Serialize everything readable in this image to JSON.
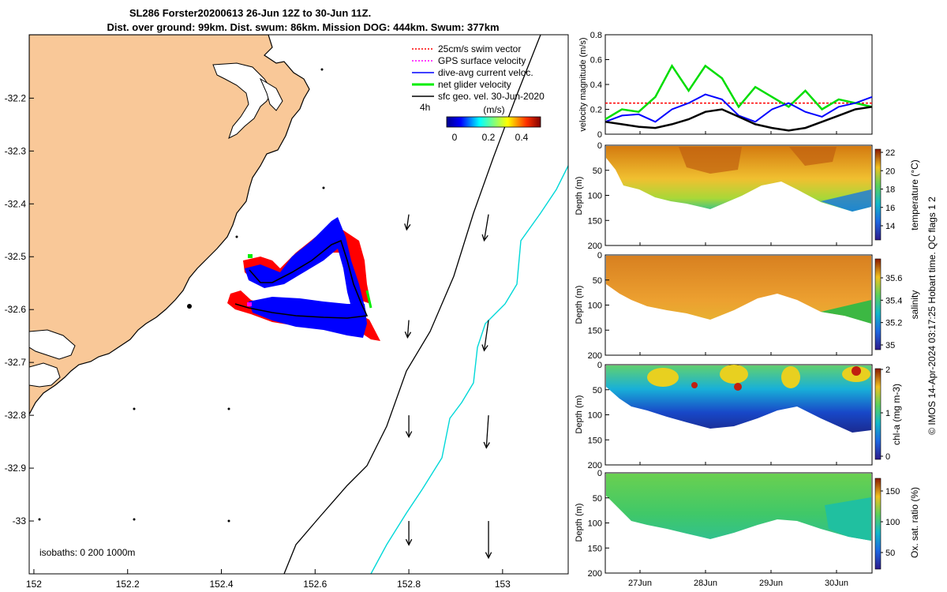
{
  "title": {
    "line1": "SL286 Forster20200613 26-Jun 12Z to 30-Jun 11Z.",
    "line2": "Dist. over ground: 99km. Dist. swum: 86km. Mission DOG: 444km. Swum: 377km"
  },
  "map": {
    "x_ticks": [
      "152",
      "152.2",
      "152.4",
      "152.6",
      "152.8",
      "153"
    ],
    "y_ticks": [
      "-32.2",
      "-32.3",
      "-32.4",
      "-32.5",
      "-32.6",
      "-32.7",
      "-32.8",
      "-32.9",
      "-33"
    ],
    "xlim": [
      151.99,
      153.14
    ],
    "ylim": [
      -33.1,
      -32.08
    ],
    "legend": [
      {
        "label": "25cm/s swim vector",
        "color": "#ff0000",
        "style": "dotted"
      },
      {
        "label": "GPS surface velocity",
        "color": "#ff00ff",
        "style": "dotted"
      },
      {
        "label": "dive-avg current veloc.",
        "color": "#0000ff",
        "style": "solid"
      },
      {
        "label": "net glider velocity",
        "color": "#00ee00",
        "style": "solid"
      },
      {
        "label": "sfc geo. vel. 30-Jun-2020",
        "color": "#000000",
        "style": "solid"
      }
    ],
    "colorbar": {
      "label": "(m/s)",
      "ticks": [
        "0",
        "0.2",
        "0.4"
      ],
      "ref_label": "4h"
    },
    "isobaths_label": "isobaths: 0   200  1000m",
    "land_color": "#f9c898",
    "geo_vectors": [
      {
        "lon": 152.8,
        "lat": -32.42,
        "u": -0.05,
        "v": -0.35
      },
      {
        "lon": 152.97,
        "lat": -32.42,
        "u": -0.1,
        "v": -0.6
      },
      {
        "lon": 152.8,
        "lat": -32.62,
        "u": -0.03,
        "v": -0.4
      },
      {
        "lon": 152.97,
        "lat": -32.62,
        "u": -0.1,
        "v": -0.7
      },
      {
        "lon": 152.8,
        "lat": -32.8,
        "u": 0.0,
        "v": -0.5
      },
      {
        "lon": 152.97,
        "lat": -32.8,
        "u": -0.05,
        "v": -0.75
      },
      {
        "lon": 152.8,
        "lat": -33.0,
        "u": 0.0,
        "v": -0.55
      },
      {
        "lon": 152.97,
        "lat": -33.0,
        "u": 0.0,
        "v": -0.85
      }
    ]
  },
  "panels": {
    "x_ticks": [
      "27Jun",
      "28Jun",
      "29Jun",
      "30Jun"
    ],
    "velocity": {
      "ylabel": "velocity magnitude (m/s)",
      "y_ticks": [
        "0",
        "0.2",
        "0.4",
        "0.6",
        "0.8"
      ]
    },
    "temperature": {
      "ylabel": "Depth (m)",
      "cbar_label": "temperature (°C)",
      "cbar_ticks": [
        "22",
        "20",
        "18",
        "16",
        "14"
      ],
      "y_ticks": [
        "0",
        "50",
        "100",
        "150",
        "200"
      ]
    },
    "salinity": {
      "ylabel": "Depth (m)",
      "cbar_label": "salinity",
      "cbar_ticks": [
        "35.6",
        "35.4",
        "35.2",
        "35"
      ],
      "y_ticks": [
        "0",
        "50",
        "100",
        "150",
        "200"
      ]
    },
    "chla": {
      "ylabel": "Depth (m)",
      "cbar_label": "chl-a (mg m-3)",
      "cbar_ticks": [
        "2",
        "1",
        "0"
      ],
      "y_ticks": [
        "0",
        "50",
        "100",
        "150",
        "200"
      ]
    },
    "oxygen": {
      "ylabel": "Depth (m)",
      "cbar_label": "Ox. sat. ratio (%)",
      "cbar_ticks": [
        "150",
        "100",
        "50"
      ],
      "y_ticks": [
        "0",
        "50",
        "100",
        "150",
        "200"
      ]
    }
  },
  "credit": "© IMOS 14-Apr-2024 03:17:25 Hobart time. QC flags 1  2",
  "chart_data": [
    {
      "type": "scatter",
      "title": "SL286 Forster20200613 26-Jun 12Z to 30-Jun 11Z.",
      "xlim": [
        151.99,
        153.14
      ],
      "ylim": [
        -33.1,
        -32.08
      ],
      "glider_track": [
        [
          152.47,
          -32.55
        ],
        [
          152.5,
          -32.57
        ],
        [
          152.58,
          -32.52
        ],
        [
          152.63,
          -32.5
        ],
        [
          152.65,
          -32.53
        ],
        [
          152.67,
          -32.6
        ],
        [
          152.68,
          -32.66
        ],
        [
          152.6,
          -32.66
        ],
        [
          152.5,
          -32.64
        ],
        [
          152.44,
          -32.63
        ]
      ]
    },
    {
      "type": "line",
      "ylabel": "velocity magnitude (m/s)",
      "ylim": [
        0,
        0.8
      ],
      "x": [
        "26-Jun 12Z",
        "26-Jun 18Z",
        "27-Jun 00Z",
        "27-Jun 06Z",
        "27-Jun 12Z",
        "27-Jun 18Z",
        "28-Jun 00Z",
        "28-Jun 06Z",
        "28-Jun 12Z",
        "28-Jun 18Z",
        "29-Jun 00Z",
        "29-Jun 06Z",
        "29-Jun 12Z",
        "29-Jun 18Z",
        "30-Jun 00Z",
        "30-Jun 06Z",
        "30-Jun 11Z"
      ],
      "series": [
        {
          "name": "25cm/s swim vector",
          "values": [
            0.25,
            0.25,
            0.25,
            0.25,
            0.25,
            0.25,
            0.25,
            0.25,
            0.25,
            0.25,
            0.25,
            0.25,
            0.25,
            0.25,
            0.25,
            0.25,
            0.25
          ]
        },
        {
          "name": "net glider velocity",
          "values": [
            0.12,
            0.2,
            0.18,
            0.3,
            0.55,
            0.35,
            0.55,
            0.45,
            0.22,
            0.38,
            0.3,
            0.22,
            0.35,
            0.2,
            0.28,
            0.25,
            0.22
          ]
        },
        {
          "name": "dive-avg current veloc.",
          "values": [
            0.1,
            0.15,
            0.16,
            0.1,
            0.2,
            0.25,
            0.32,
            0.28,
            0.15,
            0.1,
            0.2,
            0.25,
            0.18,
            0.14,
            0.22,
            0.25,
            0.3
          ]
        },
        {
          "name": "sfc geo. vel. 30-Jun-2020",
          "values": [
            0.1,
            0.08,
            0.06,
            0.05,
            0.08,
            0.12,
            0.18,
            0.2,
            0.14,
            0.08,
            0.05,
            0.03,
            0.05,
            0.1,
            0.15,
            0.2,
            0.22
          ]
        }
      ]
    },
    {
      "type": "heatmap",
      "ylabel": "Depth (m)",
      "ylim": [
        200,
        0
      ],
      "x": [
        "26-Jun 12Z",
        "27-Jun 00Z",
        "27-Jun 12Z",
        "28-Jun 00Z",
        "28-Jun 12Z",
        "29-Jun 00Z",
        "29-Jun 12Z",
        "30-Jun 00Z",
        "30-Jun 11Z"
      ],
      "max_depth": [
        50,
        80,
        110,
        130,
        110,
        115,
        100,
        120,
        130
      ],
      "temperature_surface": [
        20,
        20.5,
        21,
        21.5,
        20.5,
        20,
        21,
        19.5,
        18
      ],
      "salinity_surface": [
        35.5,
        35.5,
        35.55,
        35.5,
        35.5,
        35.5,
        35.5,
        35.45,
        35.3
      ],
      "chla_surface": [
        0.8,
        1.2,
        1.5,
        1.6,
        1.3,
        1.2,
        1.5,
        1.2,
        1.8
      ],
      "oxygen_surface": [
        105,
        105,
        108,
        108,
        106,
        106,
        106,
        100,
        95
      ]
    }
  ]
}
